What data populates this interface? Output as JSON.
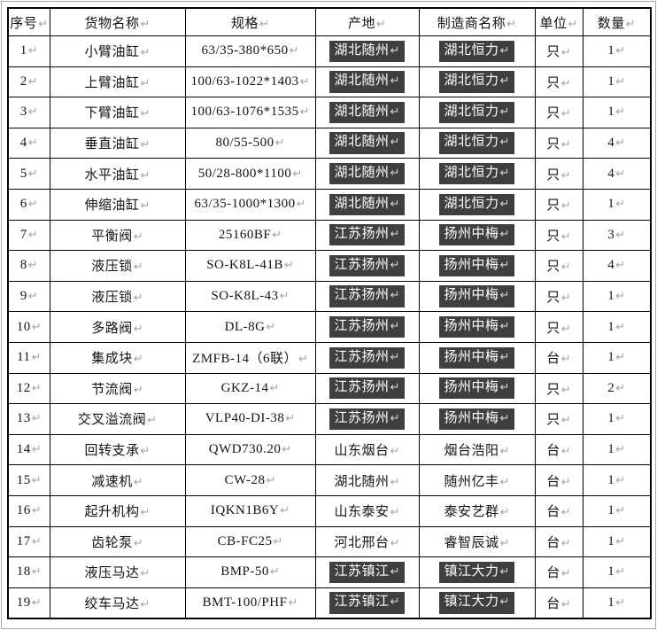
{
  "document": {
    "type": "word-table-page",
    "cell_end_mark": "↵"
  },
  "colors": {
    "highlight_bg": "#3f3f3f",
    "highlight_text": "#ffffff",
    "border": "#000000",
    "mark_gray": "#a6a6a6",
    "page_boundary_gray": "#a9a9a9"
  },
  "table": {
    "columns": [
      {
        "key": "index",
        "label": "序号"
      },
      {
        "key": "name",
        "label": "货物名称"
      },
      {
        "key": "spec",
        "label": "规格"
      },
      {
        "key": "origin",
        "label": "产地"
      },
      {
        "key": "manufacturer",
        "label": "制造商名称"
      },
      {
        "key": "unit",
        "label": "单位"
      },
      {
        "key": "qty",
        "label": "数量"
      }
    ],
    "selected_columns": [
      "origin",
      "manufacturer"
    ],
    "rows": [
      {
        "index": "1",
        "name": "小臂油缸",
        "spec": "63/35-380*650",
        "origin": "湖北随州",
        "manufacturer": "湖北恒力",
        "unit": "只",
        "qty": "1",
        "selected": true
      },
      {
        "index": "2",
        "name": "上臂油缸",
        "spec": "100/63-1022*1403",
        "origin": "湖北随州",
        "manufacturer": "湖北恒力",
        "unit": "只",
        "qty": "1",
        "selected": true
      },
      {
        "index": "3",
        "name": "下臂油缸",
        "spec": "100/63-1076*1535",
        "origin": "湖北随州",
        "manufacturer": "湖北恒力",
        "unit": "只",
        "qty": "1",
        "selected": true
      },
      {
        "index": "4",
        "name": "垂直油缸",
        "spec": "80/55-500",
        "origin": "湖北随州",
        "manufacturer": "湖北恒力",
        "unit": "只",
        "qty": "4",
        "selected": true
      },
      {
        "index": "5",
        "name": "水平油缸",
        "spec": "50/28-800*1100",
        "origin": "湖北随州",
        "manufacturer": "湖北恒力",
        "unit": "只",
        "qty": "4",
        "selected": true
      },
      {
        "index": "6",
        "name": "伸缩油缸",
        "spec": "63/35-1000*1300",
        "origin": "湖北随州",
        "manufacturer": "湖北恒力",
        "unit": "只",
        "qty": "1",
        "selected": true
      },
      {
        "index": "7",
        "name": "平衡阀",
        "spec": "25160BF",
        "origin": "江苏扬州",
        "manufacturer": "扬州中梅",
        "unit": "只",
        "qty": "3",
        "selected": true
      },
      {
        "index": "8",
        "name": "液压锁",
        "spec": "SO-K8L-41B",
        "origin": "江苏扬州",
        "manufacturer": "扬州中梅",
        "unit": "只",
        "qty": "4",
        "selected": true
      },
      {
        "index": "9",
        "name": "液压锁",
        "spec": "SO-K8L-43",
        "origin": "江苏扬州",
        "manufacturer": "扬州中梅",
        "unit": "只",
        "qty": "1",
        "selected": true
      },
      {
        "index": "10",
        "name": "多路阀",
        "spec": "DL-8G",
        "origin": "江苏扬州",
        "manufacturer": "扬州中梅",
        "unit": "只",
        "qty": "1",
        "selected": true
      },
      {
        "index": "11",
        "name": "集成块",
        "spec": "ZMFB-14（6联）",
        "origin": "江苏扬州",
        "manufacturer": "扬州中梅",
        "unit": "台",
        "qty": "1",
        "selected": true
      },
      {
        "index": "12",
        "name": "节流阀",
        "spec": "GKZ-14",
        "origin": "江苏扬州",
        "manufacturer": "扬州中梅",
        "unit": "只",
        "qty": "2",
        "selected": true
      },
      {
        "index": "13",
        "name": "交叉溢流阀",
        "spec": "VLP40-DI-38",
        "origin": "江苏扬州",
        "manufacturer": "扬州中梅",
        "unit": "只",
        "qty": "1",
        "selected": true
      },
      {
        "index": "14",
        "name": "回转支承",
        "spec": "QWD730.20",
        "origin": "山东烟台",
        "manufacturer": "烟台浩阳",
        "unit": "台",
        "qty": "1",
        "selected": false
      },
      {
        "index": "15",
        "name": "减速机",
        "spec": "CW-28",
        "origin": "湖北随州",
        "manufacturer": "随州亿丰",
        "unit": "台",
        "qty": "1",
        "selected": false
      },
      {
        "index": "16",
        "name": "起升机构",
        "spec": "IQKN1B6Y",
        "origin": "山东泰安",
        "manufacturer": "泰安艺群",
        "unit": "台",
        "qty": "1",
        "selected": false
      },
      {
        "index": "17",
        "name": "齿轮泵",
        "spec": "CB-FC25",
        "origin": "河北邢台",
        "manufacturer": "睿智辰诚",
        "unit": "台",
        "qty": "1",
        "selected": false
      },
      {
        "index": "18",
        "name": "液压马达",
        "spec": "BMP-50",
        "origin": "江苏镇江",
        "manufacturer": "镇江大力",
        "unit": "台",
        "qty": "1",
        "selected": true
      },
      {
        "index": "19",
        "name": "绞车马达",
        "spec": "BMT-100/PHF",
        "origin": "江苏镇江",
        "manufacturer": "镇江大力",
        "unit": "台",
        "qty": "1",
        "selected": true
      }
    ]
  }
}
